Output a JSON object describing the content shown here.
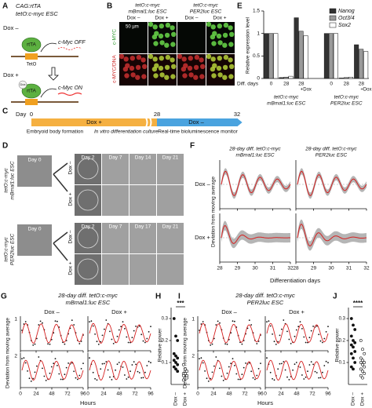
{
  "A": {
    "label": "A",
    "strain": "CAG:rtTA",
    "cell": "tetO:c-myc ESC",
    "dox_minus": "Dox –",
    "dox_plus": "Dox +",
    "rtta": "rtTA",
    "teto": "TetO",
    "gene_off": "c-Myc OFF",
    "gene_on": "c-Myc ON",
    "dox": "Dox"
  },
  "B": {
    "label": "B",
    "columns": [
      {
        "line1": "tetO:c-myc",
        "line2": "mBmal1:luc ESC"
      },
      {
        "line1": "tetO:c-myc",
        "line2": "PER2luc ESC"
      }
    ],
    "conditions": [
      "Dox –",
      "Dox +"
    ],
    "rows": [
      "c-MYC",
      "c-MYC/DNA"
    ],
    "scale_bar": "50 µm"
  },
  "C": {
    "label": "C",
    "day": "Day",
    "day_ticks": [
      "0",
      "28",
      "32"
    ],
    "phases": [
      "Dox +",
      "Dox –"
    ],
    "steps": [
      "Embryoid body formation",
      "In vitro differentiation culture",
      "Real-time bioluminescence monitor"
    ]
  },
  "D": {
    "label": "D",
    "blocks": [
      {
        "line1": "tetO:c-myc",
        "line2": "mBmal1:luc ESC",
        "start": "Day 0",
        "days": [
          "Day 2",
          "Day 7",
          "Day 14",
          "Day 21"
        ]
      },
      {
        "line1": "tetO:c-myc",
        "line2": "PER2luc ESC",
        "start": "Day 0",
        "days": [
          "Day 2",
          "Day 7",
          "Day 17",
          "Day 21"
        ]
      }
    ],
    "conditions": [
      "Dox –",
      "Dox +"
    ]
  },
  "E": {
    "label": "E",
    "type": "bar",
    "ylabel": "Relative expression level",
    "xlabel": "Diff. days",
    "ylim": [
      0,
      1.5
    ],
    "yticks": [
      0,
      0.5,
      1,
      1.5
    ],
    "categories": [
      "0",
      "28",
      "28",
      "0",
      "28",
      "28"
    ],
    "dox_marks": [
      "+Dox",
      "+Dox"
    ],
    "groups": [
      {
        "line1": "tetO:c-myc",
        "line2": "mBmal1:luc ESC"
      },
      {
        "line1": "tetO:c-myc",
        "line2": "PER2luc ESC"
      }
    ],
    "series": [
      {
        "name": "Nanog",
        "color": "#333333",
        "values": [
          1.0,
          0.02,
          1.35,
          1.0,
          0.01,
          0.75
        ]
      },
      {
        "name": "Oct3/4",
        "color": "#9a9a9a",
        "values": [
          1.0,
          0.03,
          1.05,
          1.0,
          0.02,
          0.65
        ]
      },
      {
        "name": "Sox2",
        "color": "#ffffff",
        "values": [
          1.0,
          0.05,
          0.95,
          1.0,
          0.03,
          0.6
        ]
      }
    ]
  },
  "F": {
    "label": "F",
    "titles": [
      {
        "line1": "28-day diff. tetO:c-myc",
        "line2": "mBmal1:luc ESC"
      },
      {
        "line1": "28-day diff. tetO:c-myc",
        "line2": "PER2luc ESC"
      }
    ],
    "rows": [
      "Dox –",
      "Dox +"
    ],
    "ylabel": "Deviation from moving average",
    "xlabel": "Differentiation days",
    "xticks": [
      28,
      29,
      30,
      31,
      32
    ]
  },
  "G": {
    "label": "G",
    "title_line1": "28-day diff. tetO:c-myc",
    "title_line2": "mBmal1:luc ESC",
    "conditions": [
      "Dox –",
      "Dox +"
    ],
    "replicates": [
      "1",
      "2"
    ],
    "xticks": [
      0,
      24,
      48,
      72,
      96
    ],
    "xlabel": "Hours",
    "ylabel": "Deviation from moving average"
  },
  "H": {
    "label": "H",
    "ylabel": "Relative power",
    "significance": "***",
    "categories": [
      "Dox –",
      "Dox +"
    ],
    "ylim": [
      0,
      0.35
    ],
    "yticks": [
      0.1,
      0.2,
      0.3
    ],
    "values": [
      [
        0.3,
        0.22,
        0.2,
        0.14,
        0.13,
        0.12,
        0.11,
        0.1,
        0.09,
        0.08,
        0.07,
        0.06
      ],
      [
        0.09,
        0.07,
        0.06,
        0.05,
        0.05,
        0.04,
        0.04,
        0.03,
        0.03,
        0.02
      ]
    ]
  },
  "I": {
    "label": "I",
    "title_line1": "28-day diff. tetO:c-myc",
    "title_line2": "PER2luc ESC",
    "conditions": [
      "Dox –",
      "Dox +"
    ],
    "replicates": [
      "1",
      "2"
    ],
    "xticks": [
      0,
      24,
      48,
      72,
      96
    ],
    "xlabel": "Hours",
    "ylabel": "Deviation from moving average"
  },
  "J": {
    "label": "J",
    "ylabel": "Relative power",
    "significance": "****",
    "categories": [
      "Dox –",
      "Dox +"
    ],
    "ylim": [
      0,
      0.35
    ],
    "yticks": [
      0.1,
      0.2,
      0.3
    ],
    "values": [
      [
        0.3,
        0.27,
        0.25,
        0.22,
        0.2,
        0.19,
        0.18,
        0.17,
        0.15,
        0.14,
        0.12,
        0.1,
        0.08,
        0.07
      ],
      [
        0.2,
        0.16,
        0.14,
        0.12,
        0.11,
        0.1,
        0.1,
        0.09,
        0.08,
        0.07,
        0.06,
        0.05,
        0.04,
        0.03
      ]
    ]
  }
}
